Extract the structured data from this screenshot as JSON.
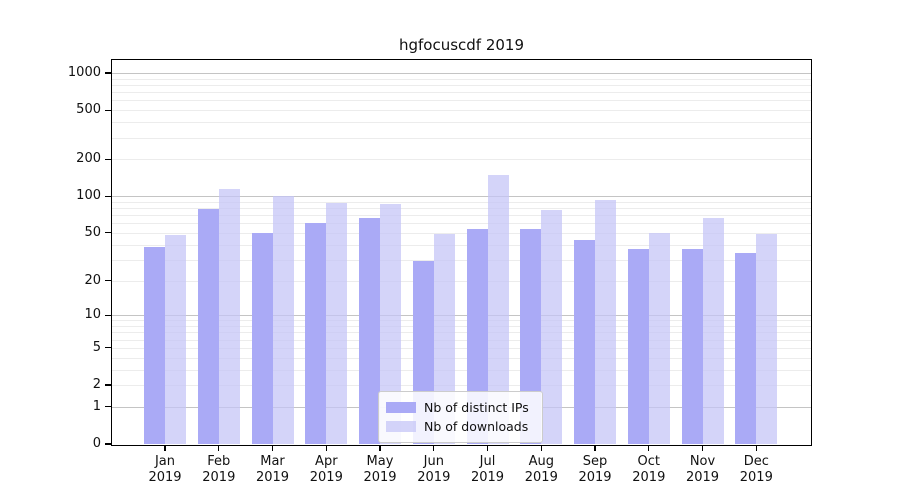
{
  "title": "hgfocuscdf 2019",
  "colors": {
    "ips_bar": "#aaaaf6",
    "downloads_bar": "rgba(196,196,247,0.72)",
    "grid_major": "#c4c4c4",
    "grid_minor": "#ececec",
    "axis": "#000000"
  },
  "chart_data": {
    "type": "bar",
    "title": "hgfocuscdf 2019",
    "categories": [
      "Jan",
      "Feb",
      "Mar",
      "Apr",
      "May",
      "Jun",
      "Jul",
      "Aug",
      "Sep",
      "Oct",
      "Nov",
      "Dec"
    ],
    "year": "2019",
    "series": [
      {
        "name": "Nb of distinct IPs",
        "color": "#aaaaf6",
        "values": [
          38,
          78,
          50,
          60,
          66,
          29,
          54,
          54,
          44,
          37,
          37,
          34
        ]
      },
      {
        "name": "Nb of downloads",
        "color": "rgba(196,196,247,0.72)",
        "values": [
          48,
          114,
          100,
          88,
          86,
          49,
          149,
          77,
          93,
          50,
          66,
          49
        ]
      }
    ],
    "y_scale": "log1p",
    "y_ticks": [
      0,
      1,
      2,
      5,
      10,
      20,
      50,
      100,
      200,
      500,
      1000
    ],
    "ylim": [
      0,
      1275
    ],
    "grid": true,
    "legend_position": "bottom-center"
  },
  "legend": {
    "item_ips": "Nb of distinct IPs",
    "item_downloads": "Nb of downloads"
  }
}
